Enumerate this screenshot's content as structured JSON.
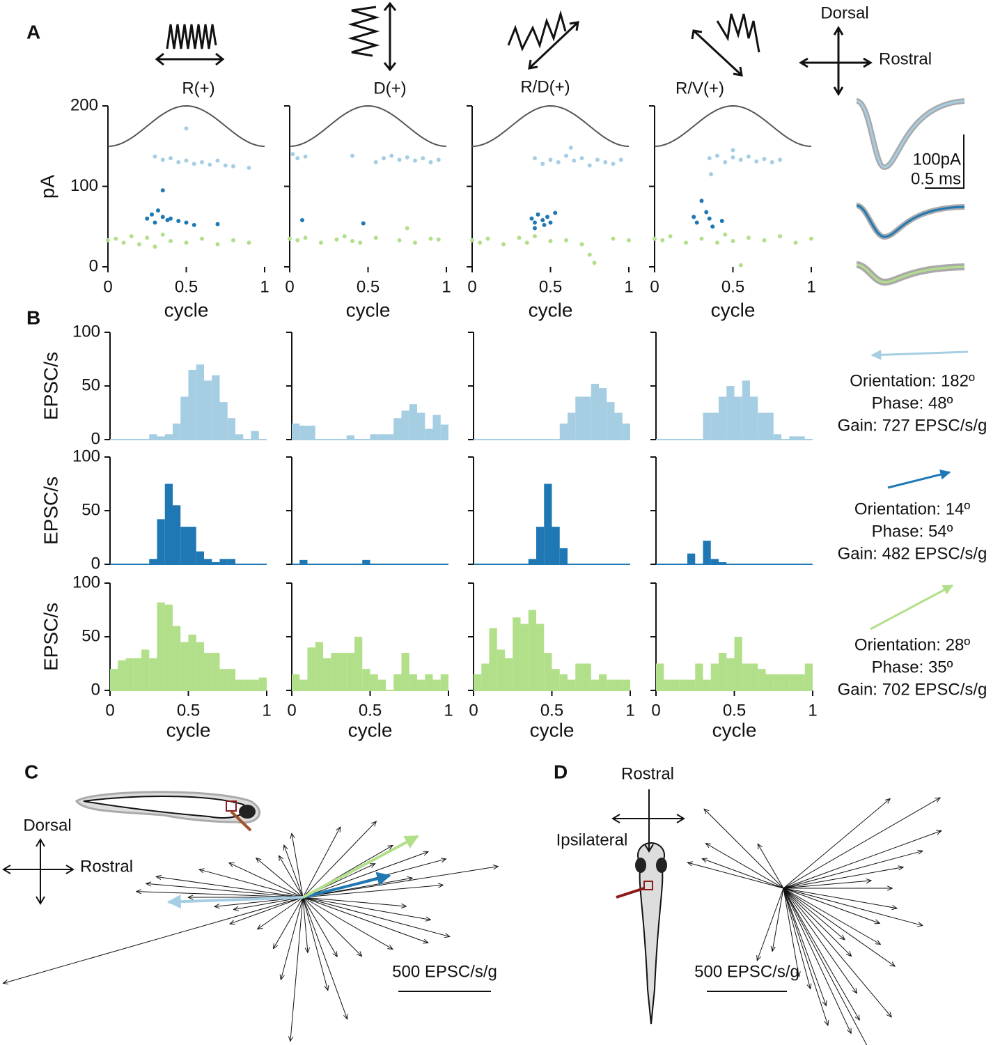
{
  "panel_labels": [
    "A",
    "B",
    "C",
    "D"
  ],
  "stimuli": [
    "R(+)",
    "D(+)",
    "R/D(+)",
    "R/V(+)"
  ],
  "compass_a": {
    "dorsal": "Dorsal",
    "rostral": "Rostral"
  },
  "scale_bar": {
    "current": "100pA",
    "time": "0.5 ms"
  },
  "chart_data": [
    {
      "type": "scatter",
      "ylabel": "pA",
      "xlabel": "cycle",
      "xlim": [
        0,
        1
      ],
      "ylim": [
        0,
        200
      ],
      "xticks": [
        0,
        0.5,
        1
      ],
      "yticks": [
        0,
        100,
        200
      ],
      "panels": [
        {
          "series": [
            {
              "color": "#a6cee3",
              "x": [
                0.3,
                0.35,
                0.4,
                0.45,
                0.5,
                0.55,
                0.6,
                0.65,
                0.7,
                0.75,
                0.8,
                0.9,
                0.5
              ],
              "values": [
                137,
                133,
                135,
                130,
                132,
                128,
                130,
                127,
                132,
                126,
                125,
                123,
                172
              ]
            },
            {
              "color": "#1f78b4",
              "x": [
                0.25,
                0.28,
                0.3,
                0.32,
                0.35,
                0.38,
                0.4,
                0.45,
                0.5,
                0.55,
                0.35,
                0.7
              ],
              "values": [
                60,
                65,
                55,
                70,
                62,
                58,
                60,
                57,
                55,
                52,
                95,
                53
              ]
            },
            {
              "color": "#b2df8a",
              "x": [
                0,
                0.05,
                0.1,
                0.15,
                0.2,
                0.25,
                0.3,
                0.35,
                0.4,
                0.5,
                0.6,
                0.7,
                0.8,
                0.9
              ],
              "values": [
                33,
                35,
                30,
                38,
                28,
                36,
                25,
                40,
                32,
                30,
                35,
                28,
                33,
                30
              ]
            }
          ]
        },
        {
          "series": [
            {
              "color": "#a6cee3",
              "x": [
                0.02,
                0.05,
                0.1,
                0.4,
                0.55,
                0.6,
                0.65,
                0.7,
                0.75,
                0.8,
                0.85,
                0.9,
                0.95
              ],
              "values": [
                140,
                135,
                137,
                138,
                130,
                135,
                138,
                133,
                136,
                132,
                135,
                130,
                133
              ]
            },
            {
              "color": "#1f78b4",
              "x": [
                0.08,
                0.47
              ],
              "values": [
                58,
                54
              ]
            },
            {
              "color": "#b2df8a",
              "x": [
                0,
                0.05,
                0.1,
                0.2,
                0.3,
                0.35,
                0.4,
                0.45,
                0.55,
                0.7,
                0.75,
                0.8,
                0.9,
                0.95
              ],
              "values": [
                35,
                33,
                36,
                30,
                34,
                38,
                32,
                30,
                36,
                33,
                48,
                30,
                35,
                34
              ]
            }
          ]
        },
        {
          "series": [
            {
              "color": "#a6cee3",
              "x": [
                0.4,
                0.45,
                0.5,
                0.55,
                0.6,
                0.65,
                0.7,
                0.75,
                0.8,
                0.85,
                0.9,
                0.95,
                0.63
              ],
              "values": [
                135,
                128,
                133,
                130,
                138,
                132,
                135,
                126,
                133,
                130,
                128,
                133,
                148
              ]
            },
            {
              "color": "#1f78b4",
              "x": [
                0.38,
                0.4,
                0.42,
                0.45,
                0.48,
                0.5,
                0.53,
                0.4,
                0.46
              ],
              "values": [
                60,
                55,
                65,
                58,
                62,
                55,
                67,
                48,
                52
              ]
            },
            {
              "color": "#b2df8a",
              "x": [
                0,
                0.05,
                0.1,
                0.2,
                0.3,
                0.35,
                0.4,
                0.5,
                0.6,
                0.7,
                0.75,
                0.78,
                0.9,
                1
              ],
              "values": [
                33,
                30,
                35,
                28,
                36,
                30,
                38,
                32,
                33,
                28,
                15,
                5,
                35,
                33
              ]
            }
          ]
        },
        {
          "series": [
            {
              "color": "#a6cee3",
              "x": [
                0.35,
                0.4,
                0.45,
                0.5,
                0.55,
                0.6,
                0.65,
                0.7,
                0.75,
                0.8,
                0.36,
                0.5
              ],
              "values": [
                135,
                138,
                130,
                136,
                133,
                137,
                131,
                134,
                130,
                133,
                115,
                145
              ]
            },
            {
              "color": "#1f78b4",
              "x": [
                0.25,
                0.27,
                0.33,
                0.35,
                0.37,
                0.43,
                0.3
              ],
              "values": [
                62,
                55,
                68,
                60,
                50,
                57,
                82
              ]
            },
            {
              "color": "#b2df8a",
              "x": [
                0,
                0.05,
                0.1,
                0.2,
                0.3,
                0.4,
                0.45,
                0.5,
                0.55,
                0.6,
                0.7,
                0.8,
                0.9,
                1
              ],
              "values": [
                35,
                33,
                38,
                30,
                35,
                30,
                40,
                32,
                2,
                36,
                33,
                38,
                30,
                35
              ]
            }
          ]
        }
      ]
    },
    {
      "type": "histogram",
      "ylabel": "EPSC/s",
      "xlabel": "cycle",
      "xlim": [
        0,
        1
      ],
      "ylim": [
        0,
        100
      ],
      "xticks": [
        0,
        0.5,
        1
      ],
      "yticks": [
        0,
        50,
        100
      ],
      "bins": [
        0,
        0.05,
        0.1,
        0.15,
        0.2,
        0.25,
        0.3,
        0.35,
        0.4,
        0.45,
        0.5,
        0.55,
        0.6,
        0.65,
        0.7,
        0.75,
        0.8,
        0.85,
        0.9,
        0.95,
        1
      ],
      "rows": [
        {
          "color": "#a6cee3",
          "orientation": 182,
          "phase": 48,
          "gain": 727,
          "labels": [
            "Orientation: 182º",
            "Phase: 48º",
            "Gain: 727 EPSC/s/g"
          ],
          "panels": [
            [
              0,
              0,
              0,
              0,
              0,
              5,
              3,
              5,
              15,
              40,
              65,
              70,
              55,
              60,
              35,
              20,
              5,
              0,
              8,
              0
            ],
            [
              15,
              13,
              13,
              0,
              0,
              0,
              0,
              4,
              0,
              0,
              5,
              5,
              5,
              20,
              27,
              33,
              25,
              10,
              23,
              14
            ],
            [
              0,
              0,
              0,
              0,
              0,
              0,
              0,
              0,
              0,
              0,
              0,
              15,
              25,
              40,
              40,
              52,
              48,
              35,
              25,
              15
            ],
            [
              0,
              0,
              0,
              0,
              0,
              0,
              25,
              25,
              40,
              50,
              40,
              55,
              40,
              25,
              25,
              5,
              0,
              3,
              3,
              0
            ]
          ]
        },
        {
          "color": "#1f78b4",
          "orientation": 14,
          "phase": 54,
          "gain": 482,
          "labels": [
            "Orientation: 14º",
            "Phase: 54º",
            "Gain: 482 EPSC/s/g"
          ],
          "panels": [
            [
              0,
              0,
              0,
              0,
              0,
              5,
              42,
              75,
              55,
              35,
              35,
              12,
              5,
              2,
              5,
              5,
              0,
              0,
              0,
              0
            ],
            [
              0,
              4,
              0,
              0,
              0,
              0,
              0,
              0,
              0,
              4,
              0,
              0,
              0,
              0,
              0,
              0,
              0,
              0,
              0,
              0
            ],
            [
              0,
              0,
              0,
              0,
              0,
              0,
              0,
              5,
              35,
              75,
              35,
              15,
              0,
              0,
              0,
              0,
              0,
              0,
              0,
              0
            ],
            [
              0,
              0,
              0,
              0,
              10,
              0,
              22,
              5,
              2,
              0,
              0,
              0,
              0,
              0,
              0,
              0,
              0,
              0,
              0,
              0
            ]
          ]
        },
        {
          "color": "#b2df8a",
          "orientation": 28,
          "phase": 35,
          "gain": 702,
          "labels": [
            "Orientation: 28º",
            "Phase: 35º",
            "Gain: 702 EPSC/s/g"
          ],
          "panels": [
            [
              20,
              28,
              30,
              30,
              38,
              30,
              82,
              80,
              60,
              45,
              52,
              45,
              35,
              35,
              20,
              20,
              10,
              10,
              10,
              12
            ],
            [
              15,
              10,
              40,
              45,
              30,
              35,
              35,
              35,
              50,
              20,
              15,
              10,
              0,
              15,
              35,
              15,
              10,
              15,
              10,
              15
            ],
            [
              15,
              25,
              58,
              38,
              30,
              68,
              62,
              75,
              62,
              35,
              20,
              15,
              10,
              25,
              25,
              10,
              15,
              10,
              10,
              10
            ],
            [
              25,
              10,
              10,
              10,
              10,
              25,
              10,
              25,
              35,
              30,
              50,
              25,
              25,
              20,
              15,
              15,
              15,
              15,
              15,
              25
            ]
          ]
        }
      ]
    },
    {
      "type": "vectors",
      "scale_value": 500,
      "scale_label": "500 EPSC/s/g",
      "dorsal": "Dorsal",
      "rostral": "Rostral",
      "vectors": [
        [
          196,
          1684
        ],
        [
          9,
          1067
        ],
        [
          46,
          570
        ],
        [
          62,
          430
        ],
        [
          100,
          350
        ],
        [
          110,
          300
        ],
        [
          120,
          260
        ],
        [
          140,
          330
        ],
        [
          155,
          440
        ],
        [
          165,
          580
        ],
        [
          172,
          800
        ],
        [
          175,
          850
        ],
        [
          178,
          900
        ],
        [
          180,
          620
        ],
        [
          186,
          480
        ],
        [
          190,
          380
        ],
        [
          200,
          420
        ],
        [
          215,
          300
        ],
        [
          240,
          320
        ],
        [
          255,
          460
        ],
        [
          275,
          300
        ],
        [
          285,
          520
        ],
        [
          300,
          370
        ],
        [
          315,
          450
        ],
        [
          330,
          560
        ],
        [
          340,
          720
        ],
        [
          345,
          820
        ],
        [
          350,
          700
        ],
        [
          355,
          560
        ],
        [
          20,
          720
        ],
        [
          30,
          560
        ],
        [
          15,
          800
        ],
        [
          5,
          760
        ],
        [
          10,
          600
        ],
        [
          25,
          430
        ],
        [
          265,
          780
        ],
        [
          290,
          700
        ]
      ]
    },
    {
      "type": "vectors",
      "scale_value": 500,
      "scale_label": "500 EPSC/s/g",
      "rostral": "Rostral",
      "ipsilateral": "Ipsilateral",
      "vectors": [
        [
          30,
          1130
        ],
        [
          20,
          1050
        ],
        [
          40,
          870
        ],
        [
          10,
          760
        ],
        [
          0,
          680
        ],
        [
          350,
          720
        ],
        [
          340,
          640
        ],
        [
          330,
          700
        ],
        [
          315,
          600
        ],
        [
          305,
          800
        ],
        [
          300,
          950
        ],
        [
          295,
          1000
        ],
        [
          290,
          780
        ],
        [
          285,
          650
        ],
        [
          280,
          560
        ],
        [
          260,
          400
        ],
        [
          250,
          480
        ],
        [
          150,
          560
        ],
        [
          160,
          540
        ],
        [
          165,
          620
        ],
        [
          135,
          700
        ],
        [
          120,
          320
        ],
        [
          345,
          900
        ],
        [
          325,
          850
        ],
        [
          310,
          1050
        ],
        [
          298,
          1150
        ],
        [
          320,
          500
        ],
        [
          5,
          550
        ],
        [
          15,
          900
        ],
        [
          288,
          900
        ]
      ]
    }
  ]
}
